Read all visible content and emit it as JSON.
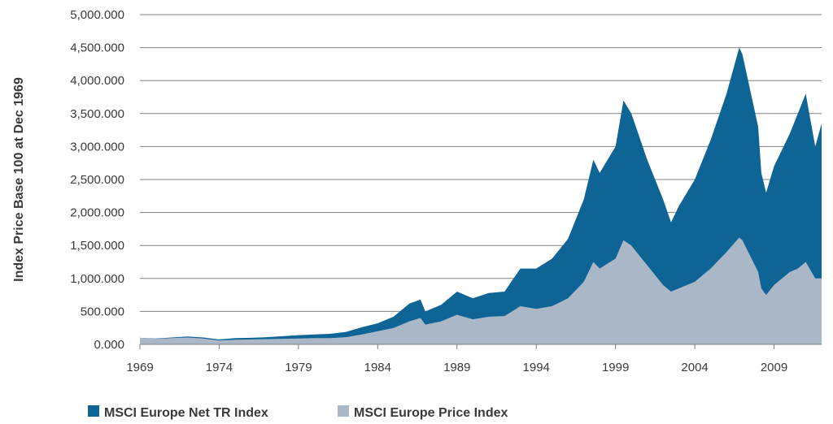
{
  "chart_data": {
    "type": "area",
    "title": "",
    "ylabel": "Index Price Base 100 at Dec 1969",
    "xlabel": "",
    "ylim": [
      0,
      5000
    ],
    "xlim": [
      1969,
      2012
    ],
    "y_ticks": [
      0,
      500,
      1000,
      1500,
      2000,
      2500,
      3000,
      3500,
      4000,
      4500,
      5000
    ],
    "y_tick_labels": [
      "0.000",
      "500.000",
      "1,000.000",
      "1,500.000",
      "2,000.000",
      "2,500.000",
      "3,000.000",
      "3,500.000",
      "4,000.000",
      "4,500.000",
      "5,000.000"
    ],
    "x_ticks": [
      1969,
      1974,
      1979,
      1984,
      1989,
      1994,
      1999,
      2004,
      2009
    ],
    "x_tick_labels": [
      "1969",
      "1974",
      "1979",
      "1984",
      "1989",
      "1994",
      "1999",
      "2004",
      "2009"
    ],
    "grid": "horizontal",
    "legend_position": "bottom",
    "x": [
      1969,
      1970,
      1971,
      1972,
      1973,
      1974,
      1975,
      1976,
      1977,
      1978,
      1979,
      1980,
      1981,
      1982,
      1983,
      1984,
      1985,
      1986,
      1986.7,
      1987,
      1988,
      1989,
      1990,
      1991,
      1992,
      1993,
      1994,
      1995,
      1996,
      1997,
      1997.6,
      1998,
      1999,
      1999.5,
      2000,
      2001,
      2002,
      2002.5,
      2003,
      2004,
      2005,
      2006,
      2006.8,
      2007,
      2008,
      2008.2,
      2008.5,
      2009,
      2010,
      2010.5,
      2011,
      2011.6,
      2012
    ],
    "series": [
      {
        "name": "MSCI Europe Net TR Index",
        "color": "#0f6496",
        "values": [
          100,
          90,
          105,
          120,
          105,
          75,
          95,
          100,
          110,
          125,
          140,
          150,
          160,
          190,
          260,
          320,
          420,
          620,
          680,
          500,
          600,
          800,
          700,
          780,
          800,
          1150,
          1150,
          1300,
          1600,
          2200,
          2800,
          2600,
          3000,
          3700,
          3500,
          2800,
          2200,
          1850,
          2100,
          2500,
          3100,
          3800,
          4500,
          4400,
          3300,
          2600,
          2300,
          2700,
          3200,
          3500,
          3800,
          3000,
          3350
        ]
      },
      {
        "name": "MSCI Europe Price Index",
        "color": "#a9b7c6",
        "values": [
          100,
          85,
          95,
          105,
          90,
          60,
          70,
          75,
          80,
          85,
          90,
          95,
          95,
          110,
          150,
          200,
          250,
          350,
          400,
          300,
          350,
          450,
          380,
          420,
          430,
          580,
          540,
          580,
          700,
          950,
          1250,
          1150,
          1300,
          1580,
          1500,
          1200,
          900,
          800,
          850,
          950,
          1150,
          1400,
          1620,
          1580,
          1100,
          850,
          750,
          900,
          1100,
          1150,
          1250,
          1000,
          1000
        ]
      }
    ]
  }
}
